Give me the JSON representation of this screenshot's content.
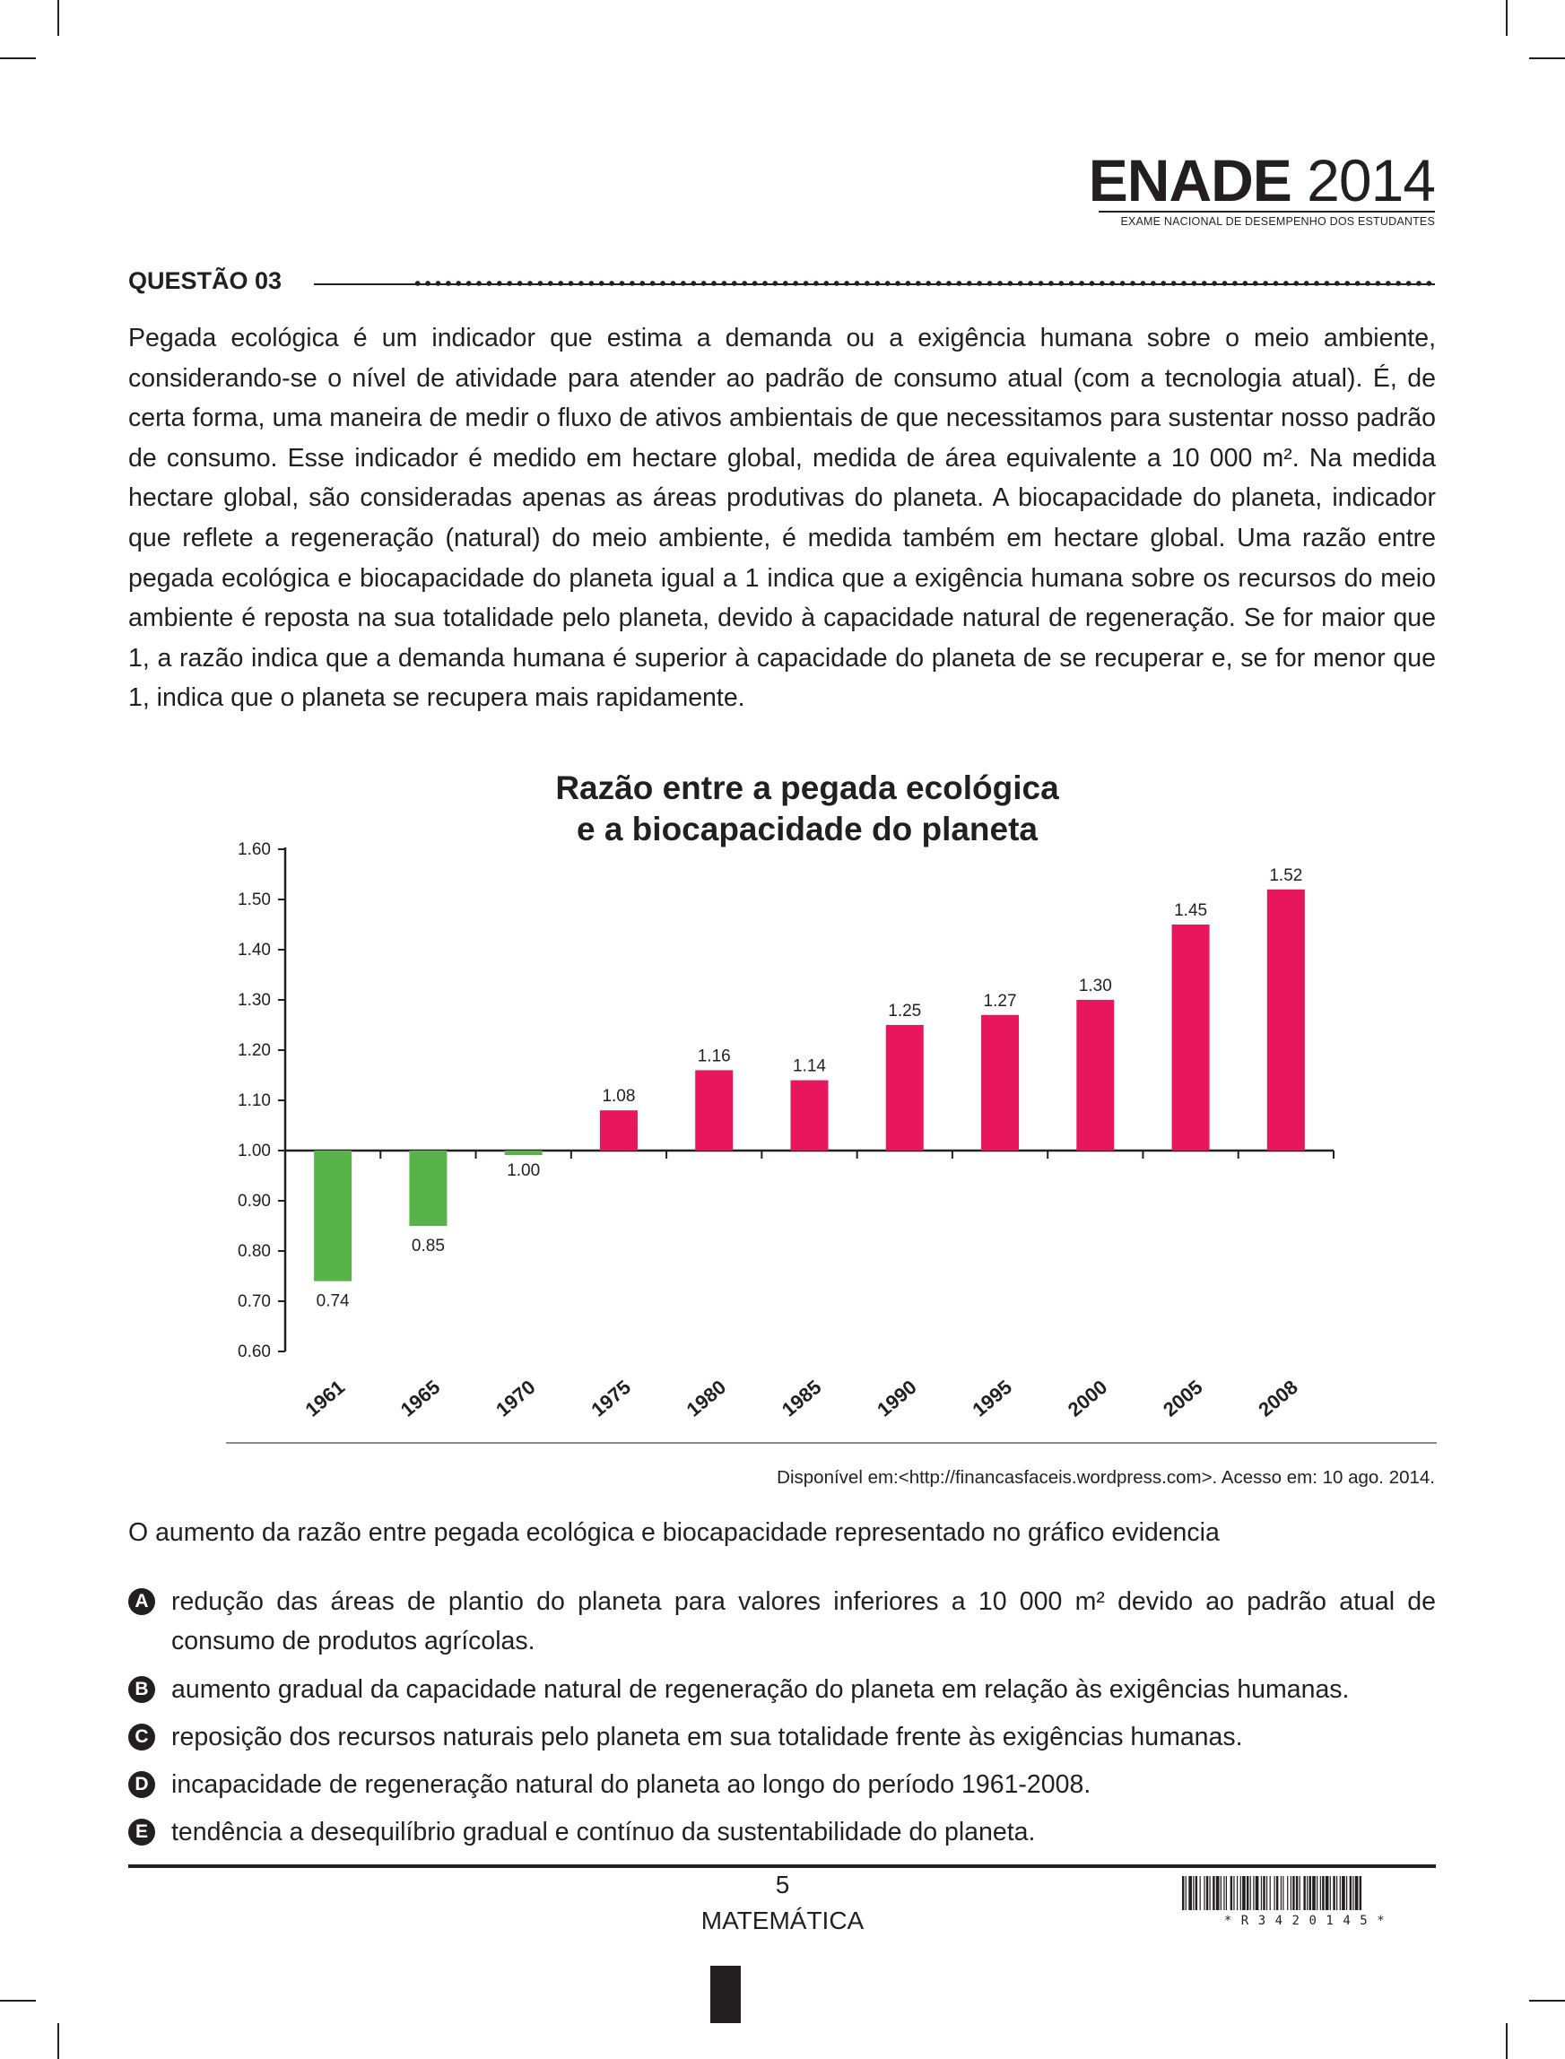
{
  "header": {
    "brand_name": "ENADE",
    "brand_year": "2014",
    "brand_subtitle": "EXAME NACIONAL DE DESEMPENHO DOS ESTUDANTES"
  },
  "question": {
    "title": "QUESTÃO 03",
    "text": "Pegada ecológica é um indicador que estima a demanda ou a exigência humana sobre o meio ambiente, considerando-se o nível de atividade para atender ao padrão de consumo atual (com a tecnologia atual). É, de certa forma, uma maneira de medir o fluxo de ativos ambientais de que necessitamos para sustentar nosso padrão de consumo. Esse indicador é medido em hectare global, medida de área equivalente a 10 000 m². Na medida hectare global, são consideradas apenas as áreas produtivas do planeta. A biocapacidade do planeta, indicador que reflete a regeneração (natural) do meio ambiente, é medida também em hectare global. Uma razão entre pegada ecológica e biocapacidade do planeta igual a 1 indica que a exigência humana sobre os recursos do meio ambiente é reposta na sua totalidade pelo planeta, devido à capacidade natural de regeneração. Se for maior que 1, a razão indica que a demanda humana é superior à capacidade do planeta de se recuperar e, se for menor que 1, indica que o planeta se recupera mais rapidamente.",
    "source": "Disponível em:<http://financasfaceis.wordpress.com>. Acesso em: 10 ago. 2014.",
    "stem": "O aumento da razão entre pegada ecológica e biocapacidade representado no gráfico evidencia",
    "options": [
      {
        "letter": "A",
        "text": "redução das áreas de plantio do planeta para valores inferiores a 10 000 m² devido ao padrão atual de consumo de produtos agrícolas."
      },
      {
        "letter": "B",
        "text": "aumento gradual da capacidade natural de regeneração do planeta em relação às exigências humanas."
      },
      {
        "letter": "C",
        "text": "reposição dos recursos naturais pelo planeta em sua totalidade frente às exigências humanas."
      },
      {
        "letter": "D",
        "text": "incapacidade de regeneração natural do planeta ao longo do período 1961-2008."
      },
      {
        "letter": "E",
        "text": "tendência a desequilíbrio gradual e contínuo da sustentabilidade do planeta."
      }
    ]
  },
  "footer": {
    "page_number": "5",
    "subject": "MATEMÁTICA",
    "barcode_text": "*R3420145*"
  },
  "chart_data": {
    "type": "bar",
    "title_line1": "Razão entre a pegada ecológica",
    "title_line2": "e a biocapacidade do planeta",
    "categories": [
      "1961",
      "1965",
      "1970",
      "1975",
      "1980",
      "1985",
      "1990",
      "1995",
      "2000",
      "2005",
      "2008"
    ],
    "values": [
      0.74,
      0.85,
      1.0,
      1.08,
      1.16,
      1.14,
      1.25,
      1.27,
      1.3,
      1.45,
      1.52
    ],
    "value_labels": [
      "0.74",
      "0.85",
      "1.00",
      "1.08",
      "1.16",
      "1.14",
      "1.25",
      "1.27",
      "1.30",
      "1.45",
      "1.52"
    ],
    "baseline": 1.0,
    "ylim": [
      0.6,
      1.6
    ],
    "yticks": [
      "0.60",
      "0.70",
      "0.80",
      "0.90",
      "1.00",
      "1.10",
      "1.20",
      "1.30",
      "1.40",
      "1.50",
      "1.60"
    ],
    "colors": {
      "above": "#e8175d",
      "below": "#57b34a",
      "axis": "#231f20"
    },
    "xlabel": "",
    "ylabel": ""
  }
}
